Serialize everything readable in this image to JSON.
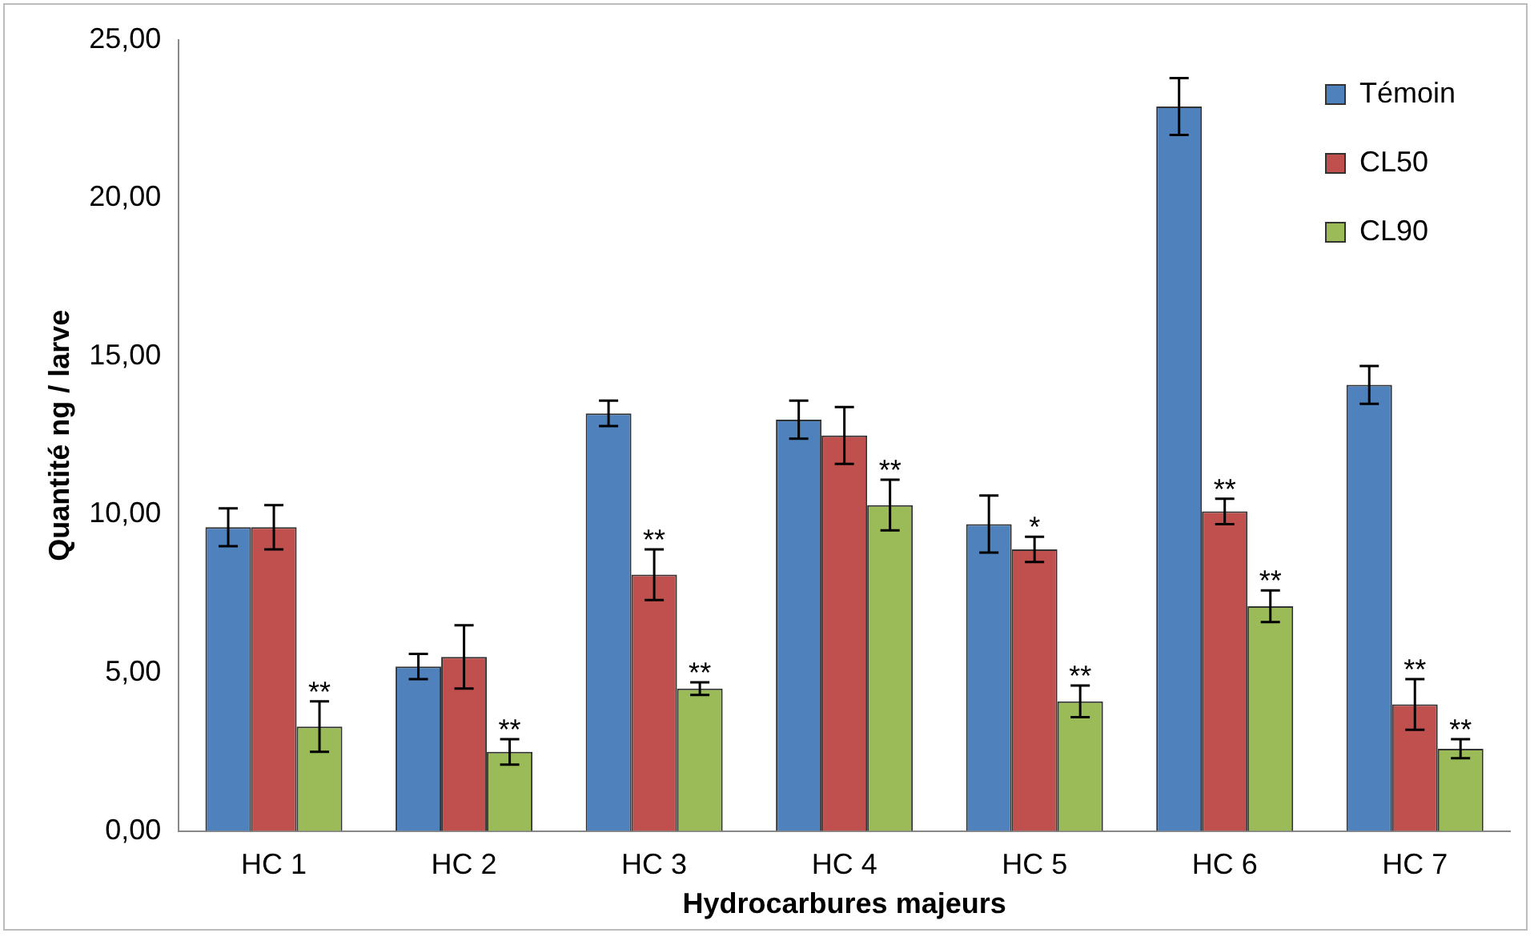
{
  "chart_data": {
    "type": "bar",
    "xlabel": "Hydrocarbures majeurs",
    "ylabel": "Quantité ng / larve",
    "categories": [
      "HC 1",
      "HC 2",
      "HC 3",
      "HC 4",
      "HC 5",
      "HC 6",
      "HC 7"
    ],
    "series": [
      {
        "name": "Témoin",
        "color": "#4f81bd",
        "values": [
          9.6,
          5.2,
          13.2,
          13.0,
          9.7,
          22.9,
          14.1
        ],
        "errors": [
          0.6,
          0.4,
          0.4,
          0.6,
          0.9,
          0.9,
          0.6
        ]
      },
      {
        "name": "CL50",
        "color": "#c0504d",
        "values": [
          9.6,
          5.5,
          8.1,
          12.5,
          8.9,
          10.1,
          4.0
        ],
        "errors": [
          0.7,
          1.0,
          0.8,
          0.9,
          0.4,
          0.4,
          0.8
        ],
        "value_labels": [
          null,
          null,
          "**",
          null,
          "*",
          "**",
          "**"
        ]
      },
      {
        "name": "CL90",
        "color": "#9bbb59",
        "values": [
          3.3,
          2.5,
          4.5,
          10.3,
          4.1,
          7.1,
          2.6
        ],
        "errors": [
          0.8,
          0.4,
          0.2,
          0.8,
          0.5,
          0.5,
          0.3
        ],
        "value_labels": [
          "**",
          "**",
          "**",
          "**",
          "**",
          "**",
          "**"
        ]
      }
    ],
    "ylim": [
      0,
      25
    ],
    "yticks": [
      {
        "value": 0,
        "label": "0,00"
      },
      {
        "value": 5,
        "label": "5,00"
      },
      {
        "value": 10,
        "label": "10,00"
      },
      {
        "value": 15,
        "label": "15,00"
      },
      {
        "value": 20,
        "label": "20,00"
      },
      {
        "value": 25,
        "label": "25,00"
      }
    ],
    "grid": false,
    "legend": "top right"
  }
}
